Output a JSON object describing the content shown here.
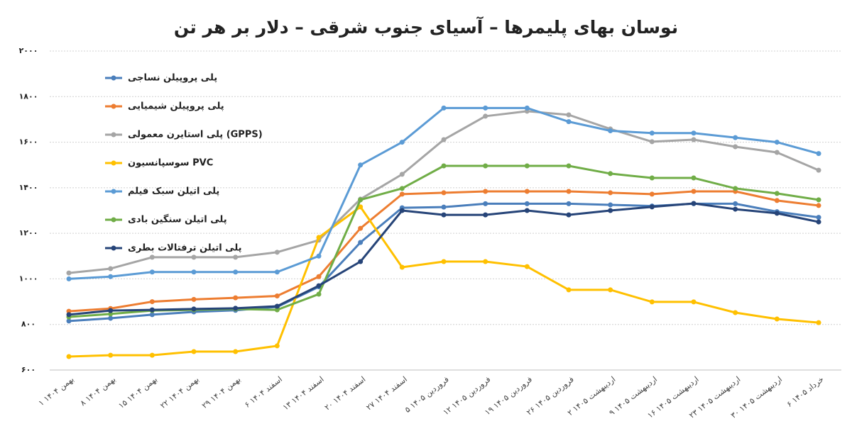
{
  "chart_data": {
    "type": "line",
    "title": "نوسان بهای پلیمرها – آسیای جنوب شرقی – دلار بر هر تن",
    "categories": [
      "۱ بهمن ۱۴۰۴",
      "۸ بهمن ۱۴۰۴",
      "۱۵ بهمن ۱۴۰۴",
      "۲۲ بهمن ۱۴۰۴",
      "۲۹ بهمن ۱۴۰۴",
      "۶ اسفند ۱۴۰۴",
      "۱۳ اسفند ۱۴۰۴",
      "۲۰ اسفند ۱۴۰۴",
      "۲۷ اسفند ۱۴۰۴",
      "۵ فروردین ۱۴۰۵",
      "۱۲ فروردین ۱۴۰۵",
      "۱۹ فروردین ۱۴۰۵",
      "۲۶ فروردین ۱۴۰۵",
      "۲ اردیبهشت ۱۴۰۵",
      "۹ اردیبهشت ۱۴۰۵",
      "۱۶ اردیبهشت ۱۴۰۵",
      "۲۳ اردیبهشت ۱۴۰۵",
      "۳۰ اردیبهشت ۱۴۰۵",
      "۶ خرداد ۱۴۰۵"
    ],
    "series": [
      {
        "name": "پلی پروپیلن نساجی",
        "color": "#4a7ebb",
        "values": [
          815,
          827,
          843,
          855,
          862,
          877,
          965,
          1160,
          1312,
          1315,
          1330,
          1330,
          1330,
          1325,
          1320,
          1330,
          1330,
          1295,
          1270
        ]
      },
      {
        "name": "پلی پروپیلن شیمیایی",
        "color": "#ed7d31",
        "values": [
          858,
          870,
          900,
          910,
          917,
          925,
          1010,
          1222,
          1372,
          1378,
          1384,
          1384,
          1384,
          1378,
          1372,
          1384,
          1384,
          1344,
          1322
        ]
      },
      {
        "name": "پلی استایرن معمولی (GPPS)",
        "color": "#a5a5a5",
        "values": [
          1026,
          1045,
          1095,
          1095,
          1095,
          1117,
          1170,
          1350,
          1459,
          1611,
          1714,
          1736,
          1720,
          1658,
          1602,
          1611,
          1580,
          1555,
          1477
        ]
      },
      {
        "name": "سوسپانسیون PVC",
        "color": "#ffc000",
        "values": [
          659,
          665,
          665,
          681,
          681,
          706,
          1182,
          1316,
          1051,
          1076,
          1076,
          1054,
          952,
          952,
          899,
          899,
          852,
          824,
          808
        ]
      },
      {
        "name": "پلی اتیلن سبک فیلم",
        "color": "#5b9bd5",
        "values": [
          1000,
          1010,
          1030,
          1030,
          1030,
          1030,
          1100,
          1500,
          1600,
          1750,
          1750,
          1750,
          1690,
          1650,
          1640,
          1640,
          1620,
          1600,
          1550
        ]
      },
      {
        "name": "پلی اتیلن سنگین بادی",
        "color": "#70ad47",
        "values": [
          833,
          846,
          861,
          864,
          868,
          864,
          933,
          1347,
          1397,
          1496,
          1496,
          1496,
          1496,
          1462,
          1443,
          1443,
          1397,
          1375,
          1347
        ]
      },
      {
        "name": "پلی اتیلن ترفتالات بطری",
        "color": "#264478",
        "values": [
          843,
          861,
          864,
          868,
          871,
          880,
          970,
          1076,
          1300,
          1281,
          1281,
          1300,
          1281,
          1300,
          1316,
          1331,
          1306,
          1288,
          1250
        ]
      }
    ],
    "ylim": [
      600,
      2000
    ],
    "yticks": [
      {
        "value": 600,
        "label": "۶۰۰"
      },
      {
        "value": 800,
        "label": "۸۰۰"
      },
      {
        "value": 1000,
        "label": "۱۰۰۰"
      },
      {
        "value": 1200,
        "label": "۱۲۰۰"
      },
      {
        "value": 1400,
        "label": "۱۴۰۰"
      },
      {
        "value": 1600,
        "label": "۱۶۰۰"
      },
      {
        "value": 1800,
        "label": "۱۸۰۰"
      },
      {
        "value": 2000,
        "label": "۲۰۰۰"
      }
    ],
    "grid": true,
    "legend": "top-left"
  }
}
